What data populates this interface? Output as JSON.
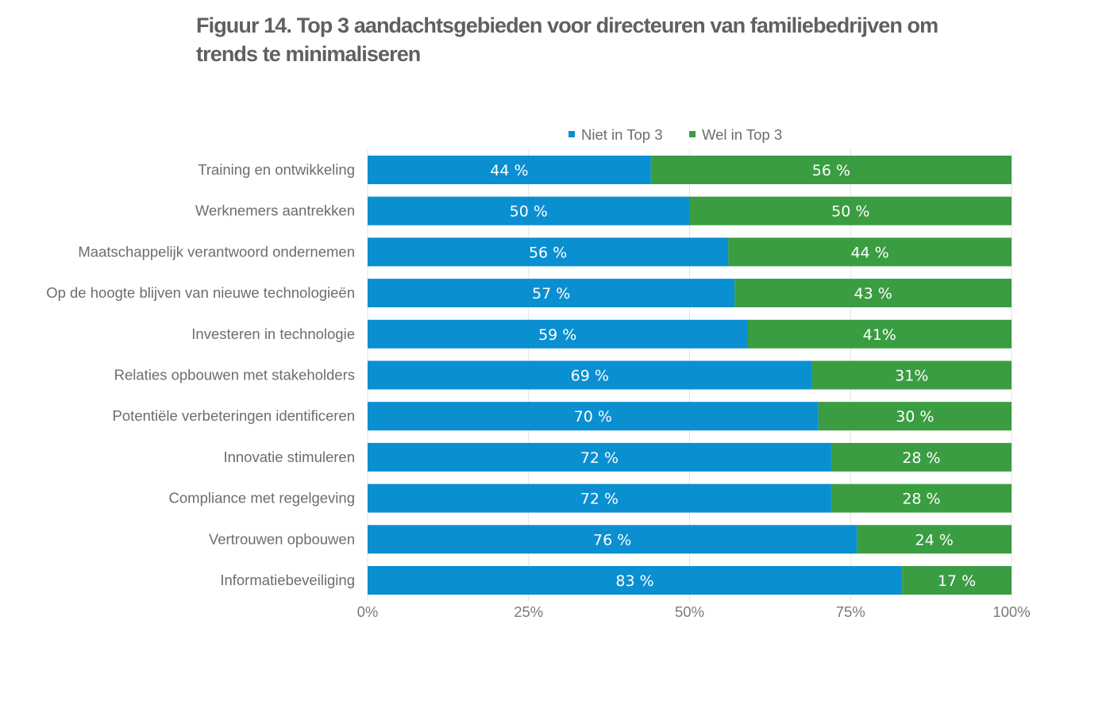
{
  "chart_data": {
    "type": "bar",
    "orientation": "horizontal",
    "stacked": true,
    "title_lines": [
      "Figuur 14. Top 3 aandachtsgebieden voor directeuren van familiebedrijven om",
      "trends te minimaliseren"
    ],
    "categories": [
      "Training en ontwikkeling",
      "Werknemers aantrekken",
      "Maatschappelijk verantwoord ondernemen",
      "Op de hoogte blijven van nieuwe technologieën",
      "Investeren in technologie",
      "Relaties opbouwen met stakeholders",
      "Potentiële verbeteringen identificeren",
      "Innovatie stimuleren",
      "Compliance met regelgeving",
      "Vertrouwen opbouwen",
      "Informatiebeveiliging"
    ],
    "series": [
      {
        "name": "Niet in Top 3",
        "color": "#0a8fd1",
        "values": [
          44,
          50,
          56,
          57,
          59,
          69,
          70,
          72,
          72,
          76,
          83
        ],
        "labels": [
          "44 %",
          "50 %",
          "56 %",
          "57 %",
          "59 %",
          "69 %",
          "70 %",
          "72 %",
          "72 %",
          "76 %",
          "83 %"
        ]
      },
      {
        "name": "Wel in Top 3",
        "color": "#3a9d42",
        "values": [
          56,
          50,
          44,
          43,
          41,
          31,
          30,
          28,
          28,
          24,
          17
        ],
        "labels": [
          "56 %",
          "50 %",
          "44 %",
          "43 %",
          "41%",
          "31%",
          "30 %",
          "28 %",
          "28 %",
          "24 %",
          "17 %"
        ]
      }
    ],
    "xlim": [
      0,
      100
    ],
    "xticks": [
      0,
      25,
      50,
      75,
      100
    ],
    "xtick_labels": [
      "0%",
      "25%",
      "50%",
      "75%",
      "100%"
    ],
    "xlabel": "",
    "ylabel": "",
    "grid": true,
    "legend_position": "top-center"
  }
}
